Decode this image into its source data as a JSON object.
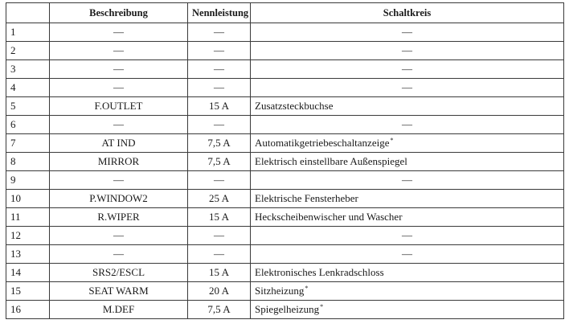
{
  "table": {
    "headers": {
      "number": "",
      "description": "Beschreibung",
      "rating": "Nennleistung",
      "circuit": "Schaltkreis"
    },
    "rows": [
      {
        "no": "1",
        "description": "—",
        "rating": "—",
        "circuit": "—",
        "star": ""
      },
      {
        "no": "2",
        "description": "—",
        "rating": "—",
        "circuit": "—",
        "star": ""
      },
      {
        "no": "3",
        "description": "—",
        "rating": "—",
        "circuit": "—",
        "star": ""
      },
      {
        "no": "4",
        "description": "—",
        "rating": "—",
        "circuit": "—",
        "star": ""
      },
      {
        "no": "5",
        "description": "F.OUTLET",
        "rating": "15 A",
        "circuit": "Zusatzsteckbuchse",
        "star": ""
      },
      {
        "no": "6",
        "description": "—",
        "rating": "—",
        "circuit": "—",
        "star": ""
      },
      {
        "no": "7",
        "description": "AT IND",
        "rating": "7,5 A",
        "circuit": "Automatikgetriebeschaltanzeige",
        "star": "*"
      },
      {
        "no": "8",
        "description": "MIRROR",
        "rating": "7,5 A",
        "circuit": "Elektrisch einstellbare Außenspiegel",
        "star": ""
      },
      {
        "no": "9",
        "description": "—",
        "rating": "—",
        "circuit": "—",
        "star": ""
      },
      {
        "no": "10",
        "description": "P.WINDOW2",
        "rating": "25 A",
        "circuit": "Elektrische Fensterheber",
        "star": ""
      },
      {
        "no": "11",
        "description": "R.WIPER",
        "rating": "15 A",
        "circuit": "Heckscheibenwischer und Wascher",
        "star": ""
      },
      {
        "no": "12",
        "description": "—",
        "rating": "—",
        "circuit": "—",
        "star": ""
      },
      {
        "no": "13",
        "description": "—",
        "rating": "—",
        "circuit": "—",
        "star": ""
      },
      {
        "no": "14",
        "description": "SRS2/ESCL",
        "rating": "15 A",
        "circuit": "Elektronisches Lenkradschloss",
        "star": ""
      },
      {
        "no": "15",
        "description": "SEAT WARM",
        "rating": "20 A",
        "circuit": "Sitzheizung",
        "star": "*"
      },
      {
        "no": "16",
        "description": "M.DEF",
        "rating": "7,5 A",
        "circuit": "Spiegelheizung",
        "star": "*"
      }
    ]
  }
}
